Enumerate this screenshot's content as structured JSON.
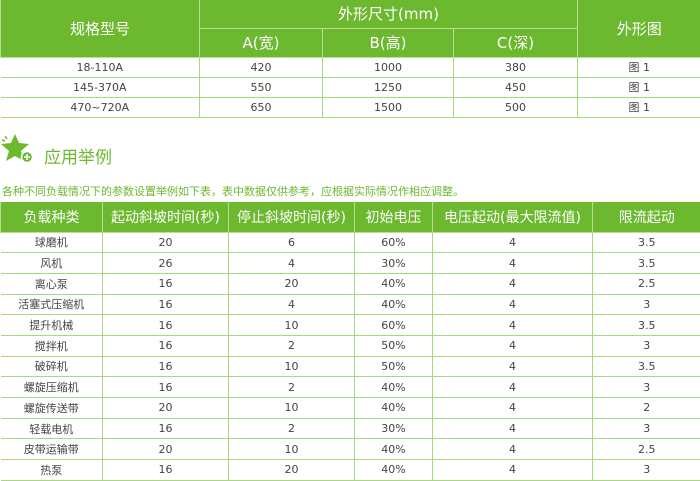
{
  "size_table": {
    "headers": {
      "model": "规格型号",
      "dimensions": "外形尺寸(mm)",
      "figure": "外形图",
      "a": "A(宽)",
      "b": "B(高)",
      "c": "C(深)"
    },
    "rows": [
      [
        "18-110A",
        "420",
        "1000",
        "380",
        "图 1"
      ],
      [
        "145-370A",
        "550",
        "1250",
        "450",
        "图 1"
      ],
      [
        "470~720A",
        "650",
        "1500",
        "500",
        "图 1"
      ]
    ]
  },
  "section": {
    "title": "应用举例",
    "icon": "star-plus-icon",
    "note": "各种不同负载情况下的参数设置举例如下表，表中数据仅供参考，应根据实际情况作相应调整。"
  },
  "app_table": {
    "headers": [
      "负载种类",
      "起动斜坡时间(秒)",
      "停止斜坡时间(秒)",
      "初始电压",
      "电压起动(最大限流值)",
      "限流起动"
    ],
    "rows": [
      [
        "球磨机",
        "20",
        "6",
        "60%",
        "4",
        "3.5"
      ],
      [
        "风机",
        "26",
        "4",
        "30%",
        "4",
        "3.5"
      ],
      [
        "离心泵",
        "16",
        "20",
        "40%",
        "4",
        "2.5"
      ],
      [
        "活塞式压缩机",
        "16",
        "4",
        "40%",
        "4",
        "3"
      ],
      [
        "提升机械",
        "16",
        "10",
        "60%",
        "4",
        "3.5"
      ],
      [
        "搅拌机",
        "16",
        "2",
        "50%",
        "4",
        "3"
      ],
      [
        "破碎机",
        "16",
        "10",
        "50%",
        "4",
        "3.5"
      ],
      [
        "螺旋压缩机",
        "16",
        "2",
        "40%",
        "4",
        "3"
      ],
      [
        "螺旋传送带",
        "20",
        "10",
        "40%",
        "4",
        "2"
      ],
      [
        "轻载电机",
        "16",
        "2",
        "30%",
        "4",
        "3"
      ],
      [
        "皮带运输带",
        "20",
        "10",
        "40%",
        "4",
        "2.5"
      ],
      [
        "热泵",
        "16",
        "20",
        "40%",
        "4",
        "3"
      ]
    ]
  },
  "colors": {
    "accent": "#6cb92f"
  }
}
